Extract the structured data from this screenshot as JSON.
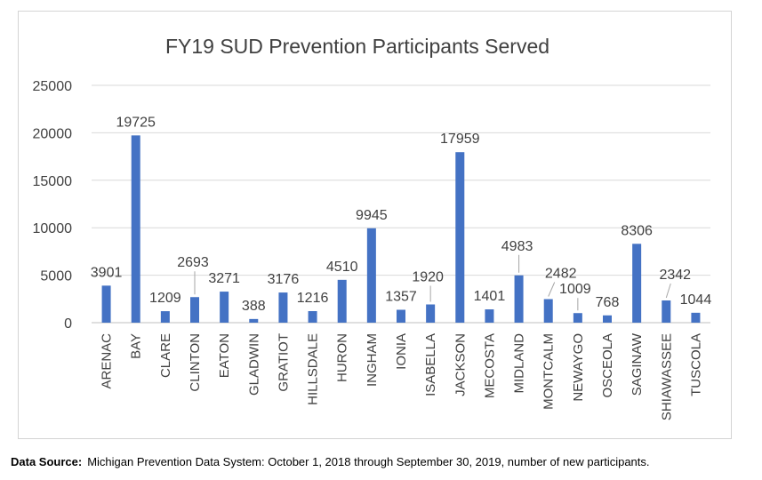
{
  "chart_data": {
    "type": "bar",
    "title": "FY19 SUD Prevention Participants Served",
    "xlabel": "",
    "ylabel": "",
    "ylim": [
      0,
      25000
    ],
    "yticks": [
      0,
      5000,
      10000,
      15000,
      20000,
      25000
    ],
    "grid": true,
    "legend": "none",
    "bar_color": "#4472c4",
    "categories": [
      "ARENAC",
      "BAY",
      "CLARE",
      "CLINTON",
      "EATON",
      "GLADWIN",
      "GRATIOT",
      "HILLSDALE",
      "HURON",
      "INGHAM",
      "IONIA",
      "ISABELLA",
      "JACKSON",
      "MECOSTA",
      "MIDLAND",
      "MONTCALM",
      "NEWAYGO",
      "OSCEOLA",
      "SAGINAW",
      "SHIAWASSEE",
      "TUSCOLA"
    ],
    "values": [
      3901,
      19725,
      1209,
      2693,
      3271,
      388,
      3176,
      1216,
      4510,
      9945,
      1357,
      1920,
      17959,
      1401,
      4983,
      2482,
      1009,
      768,
      8306,
      2342,
      1044
    ],
    "data_labels": [
      "3901",
      "19725",
      "1209",
      "2693",
      "3271",
      "388",
      "3176",
      "1216",
      "4510",
      "9945",
      "1357",
      "1920",
      "17959",
      "1401",
      "4983",
      "2482",
      "1009",
      "768",
      "8306",
      "2342",
      "1044"
    ]
  },
  "footer": {
    "source_label": "Data Source:",
    "source_text": "Michigan Prevention Data System: October 1, 2018 through September 30, 2019, number of new participants."
  }
}
